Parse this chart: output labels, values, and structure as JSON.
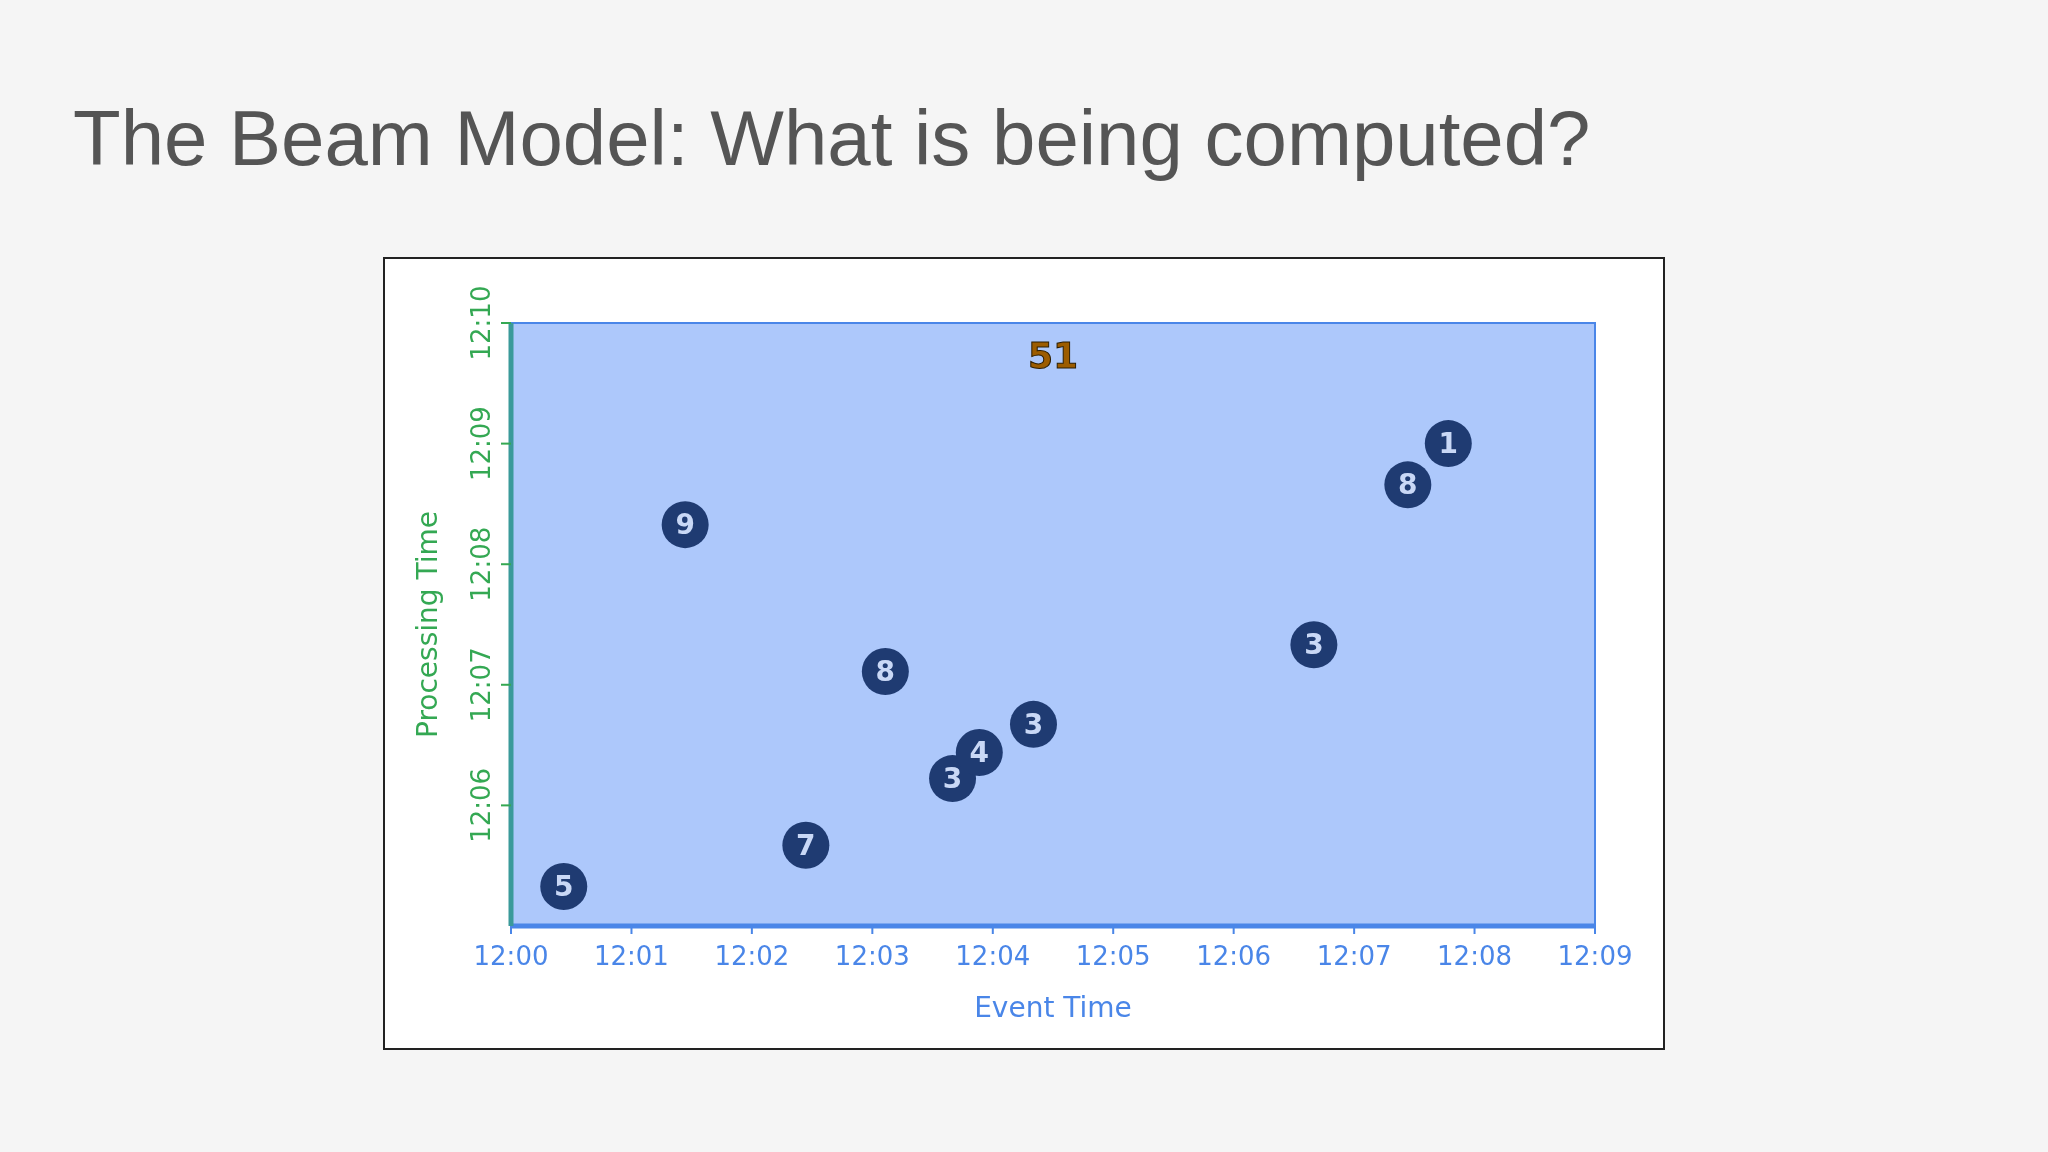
{
  "chart_data": {
    "type": "scatter",
    "title": "The Beam Model: What is being computed?",
    "xlabel": "Event Time",
    "ylabel": "Processing Time",
    "x": [
      12.0073,
      12.0241,
      12.0408,
      12.0518,
      12.0611,
      12.0648,
      12.0723,
      12.1111,
      12.1241,
      12.1297
    ],
    "values": [
      12.0888,
      12.1388,
      12.0945,
      12.1185,
      12.1037,
      12.1073,
      12.1112,
      12.1222,
      12.1443,
      12.15
    ],
    "color": "#1f3b72",
    "marker": "circle",
    "xlim": [
      12.0,
      12.15
    ],
    "xticks": [
      {
        "value": 12.0,
        "label": "12:00"
      },
      {
        "value": 12.01667,
        "label": "12:01"
      },
      {
        "value": 12.03333,
        "label": "12:02"
      },
      {
        "value": 12.05,
        "label": "12:03"
      },
      {
        "value": 12.06667,
        "label": "12:04"
      },
      {
        "value": 12.08333,
        "label": "12:05"
      },
      {
        "value": 12.1,
        "label": "12:06"
      },
      {
        "value": 12.11667,
        "label": "12:07"
      },
      {
        "value": 12.13333,
        "label": "12:08"
      },
      {
        "value": 12.15,
        "label": "12:09"
      }
    ],
    "ylim": [
      12.08333,
      12.16667
    ],
    "yticks": [
      {
        "value": 12.1,
        "label": "12:06"
      },
      {
        "value": 12.11667,
        "label": "12:07"
      },
      {
        "value": 12.13333,
        "label": "12:08"
      },
      {
        "value": 12.15,
        "label": "12:09"
      },
      {
        "value": 12.16667,
        "label": "12:10"
      }
    ],
    "bands": [
      {
        "axis": "x",
        "from": 12.0,
        "to": 12.15,
        "color": "#adc8fb"
      }
    ],
    "annotations": [
      "51",
      {
        "text": "5",
        "x": 12.0073,
        "y": 12.0888
      },
      {
        "text": "9",
        "x": 12.0241,
        "y": 12.1388
      },
      {
        "text": "7",
        "x": 12.0408,
        "y": 12.0945
      },
      {
        "text": "8",
        "x": 12.0518,
        "y": 12.1185
      },
      {
        "text": "3",
        "x": 12.0611,
        "y": 12.1037
      },
      {
        "text": "4",
        "x": 12.0648,
        "y": 12.1073
      },
      {
        "text": "3",
        "x": 12.0723,
        "y": 12.1112
      },
      {
        "text": "3",
        "x": 12.1111,
        "y": 12.1222
      },
      {
        "text": "8",
        "x": 12.1241,
        "y": 12.1443
      },
      {
        "text": "1",
        "x": 12.1297,
        "y": 12.15
      }
    ]
  }
}
